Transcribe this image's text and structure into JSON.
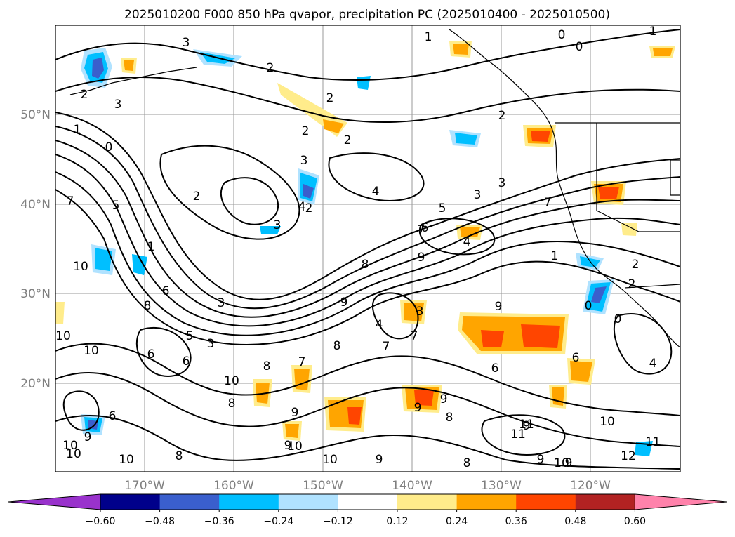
{
  "title": "2025010200 F000 850 hPa qvapor, precipitation PC (2025010400 - 2025010500)",
  "lat_labels": [
    "50°N",
    "40°N",
    "30°N",
    "20°N"
  ],
  "lon_labels": [
    "170°W",
    "160°W",
    "150°W",
    "140°W",
    "130°W",
    "120°W"
  ],
  "colorbar": {
    "tick_labels": [
      "−0.60",
      "−0.48",
      "−0.36",
      "−0.24",
      "−0.12",
      "0.12",
      "0.24",
      "0.36",
      "0.48",
      "0.60"
    ],
    "bin_colors": [
      "#9932cc",
      "#00008b",
      "#3a5fcd",
      "#00bfff",
      "#b0e2ff",
      "#ffffff",
      "#ffec8b",
      "#ffa500",
      "#ff4500",
      "#b22222",
      "#ff82ab"
    ]
  },
  "contour_labels": [
    "1",
    "0",
    "0",
    "1",
    "3",
    "2",
    "2",
    "2",
    "2",
    "3",
    "2",
    "3",
    "2",
    "0",
    "2",
    "1",
    "5",
    "7",
    "2",
    "4",
    "3",
    "4",
    "3",
    "3",
    "7",
    "6",
    "5",
    "4",
    "7",
    "4",
    "1",
    "1",
    "3",
    "10",
    "8",
    "9",
    "8",
    "9",
    "3",
    "6",
    "9",
    "0",
    "0",
    "2",
    "2",
    "10",
    "5",
    "10",
    "6",
    "6",
    "3",
    "7",
    "8",
    "7",
    "8",
    "7",
    "10",
    "6",
    "6",
    "9",
    "9",
    "8",
    "4",
    "9",
    "8",
    "11",
    "11",
    "10",
    "10",
    "9",
    "12",
    "11",
    "10",
    "10",
    "9",
    "9",
    "10",
    "9",
    "8",
    "9",
    "10",
    "8",
    "10",
    "9",
    "6"
  ]
}
